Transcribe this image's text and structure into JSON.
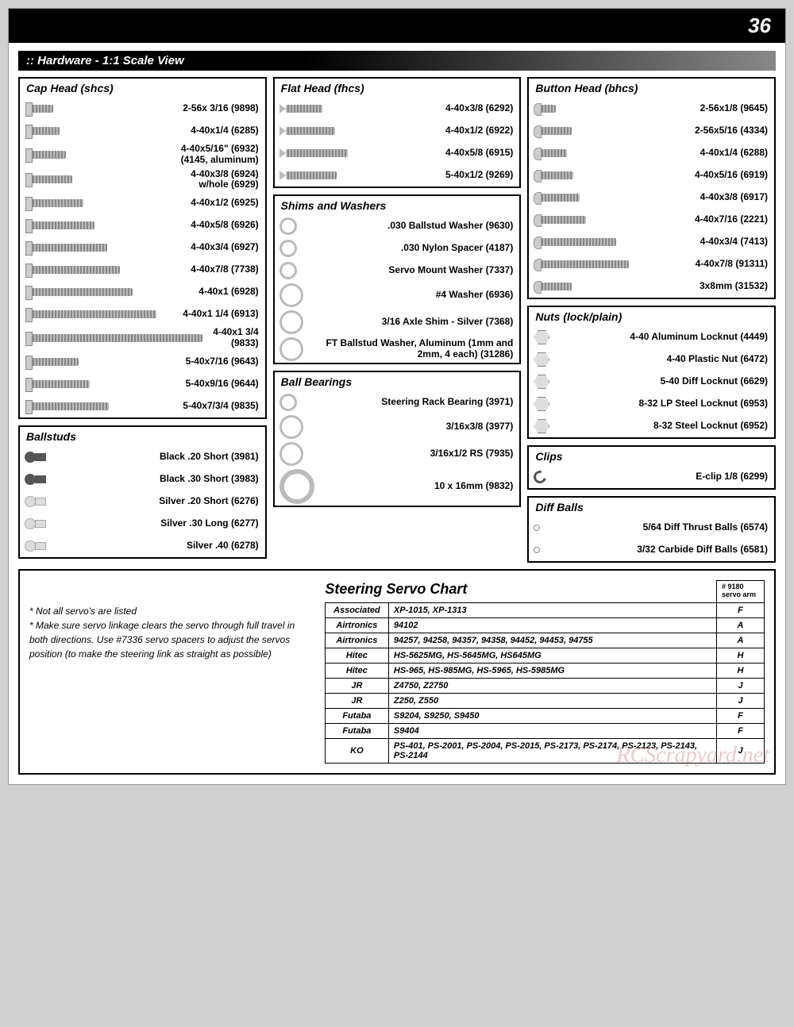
{
  "page_number": "36",
  "section_title": ":: Hardware - 1:1 Scale View",
  "cap_head": {
    "title": "Cap Head (shcs)",
    "items": [
      {
        "len": 28,
        "label": "2-56x 3/16 (9898)"
      },
      {
        "len": 36,
        "label": "4-40x1/4 (6285)"
      },
      {
        "len": 44,
        "label": "4-40x5/16\" (6932)\n(4145, aluminum)"
      },
      {
        "len": 52,
        "label": "4-40x3/8 (6924)\nw/hole (6929)"
      },
      {
        "len": 66,
        "label": "4-40x1/2 (6925)"
      },
      {
        "len": 80,
        "label": "4-40x5/8 (6926)"
      },
      {
        "len": 96,
        "label": "4-40x3/4 (6927)"
      },
      {
        "len": 112,
        "label": "4-40x7/8 (7738)"
      },
      {
        "len": 128,
        "label": "4-40x1 (6928)"
      },
      {
        "len": 158,
        "label": "4-40x1 1/4 (6913)"
      },
      {
        "len": 216,
        "label": "4-40x1 3/4 (9833)"
      },
      {
        "len": 60,
        "label": "5-40x7/16 (9643)"
      },
      {
        "len": 74,
        "label": "5-40x9/16 (9644)"
      },
      {
        "len": 98,
        "label": "5-40x7/3/4 (9835)"
      }
    ]
  },
  "flat_head": {
    "title": "Flat Head (fhcs)",
    "items": [
      {
        "len": 46,
        "label": "4-40x3/8 (6292)"
      },
      {
        "len": 62,
        "label": "4-40x1/2 (6922)"
      },
      {
        "len": 78,
        "label": "4-40x5/8 (6915)"
      },
      {
        "len": 64,
        "label": "5-40x1/2 (9269)"
      }
    ]
  },
  "shims": {
    "title": "Shims and Washers",
    "items": [
      {
        "label": ".030 Ballstud Washer (9630)"
      },
      {
        "label": ".030 Nylon  Spacer (4187)"
      },
      {
        "label": "Servo Mount Washer (7337)"
      },
      {
        "label": "#4 Washer (6936)"
      },
      {
        "label": "3/16 Axle Shim - Silver (7368)"
      },
      {
        "label": "FT Ballstud Washer, Aluminum (1mm and 2mm, 4 each) (31286)"
      }
    ]
  },
  "bearings": {
    "title": "Ball Bearings",
    "items": [
      {
        "label": "Steering Rack Bearing (3971)"
      },
      {
        "label": "3/16x3/8 (3977)"
      },
      {
        "label": "3/16x1/2 RS (7935)"
      },
      {
        "label": "10 x 16mm (9832)"
      }
    ]
  },
  "button_head": {
    "title": "Button Head (bhcs)",
    "items": [
      {
        "len": 20,
        "label": "2-56x1/8 (9645)"
      },
      {
        "len": 40,
        "label": "2-56x5/16 (4334)"
      },
      {
        "len": 34,
        "label": "4-40x1/4 (6288)"
      },
      {
        "len": 42,
        "label": "4-40x5/16 (6919)"
      },
      {
        "len": 50,
        "label": "4-40x3/8 (6917)"
      },
      {
        "len": 58,
        "label": "4-40x7/16 (2221)"
      },
      {
        "len": 96,
        "label": "4-40x3/4 (7413)"
      },
      {
        "len": 112,
        "label": "4-40x7/8 (91311)"
      },
      {
        "len": 40,
        "label": "3x8mm (31532)"
      }
    ]
  },
  "nuts": {
    "title": "Nuts (lock/plain)",
    "items": [
      {
        "label": "4-40 Aluminum Locknut (4449)"
      },
      {
        "label": "4-40 Plastic Nut (6472)"
      },
      {
        "label": "5-40 Diff Locknut (6629)"
      },
      {
        "label": "8-32 LP Steel Locknut (6953)"
      },
      {
        "label": "8-32 Steel Locknut (6952)"
      }
    ]
  },
  "clips": {
    "title": "Clips",
    "items": [
      {
        "label": "E-clip 1/8 (6299)"
      }
    ]
  },
  "diff_balls": {
    "title": "Diff Balls",
    "items": [
      {
        "label": "5/64 Diff Thrust Balls (6574)"
      },
      {
        "label": "3/32 Carbide Diff Balls (6581)"
      }
    ]
  },
  "ballstuds": {
    "title": "Ballstuds",
    "items": [
      {
        "dark": true,
        "label": "Black .20 Short (3981)"
      },
      {
        "dark": true,
        "label": "Black .30 Short (3983)"
      },
      {
        "dark": false,
        "label": "Silver .20 Short (6276)"
      },
      {
        "dark": false,
        "label": "Silver .30 Long (6277)"
      },
      {
        "dark": false,
        "label": "Silver .40 (6278)"
      }
    ]
  },
  "notes": [
    "* Not all servo's are listed",
    "* Make sure servo linkage clears the servo through full travel in both directions. Use #7336 servo spacers to adjust the servos position (to make the steering link as straight as possible)"
  ],
  "servo_chart": {
    "title": "Steering Servo Chart",
    "header_note": "# 9180\nservo arm",
    "rows": [
      {
        "brand": "Associated",
        "models": "XP-1015, XP-1313",
        "arm": "F"
      },
      {
        "brand": "Airtronics",
        "models": "94102",
        "arm": "A"
      },
      {
        "brand": "Airtronics",
        "models": "94257, 94258, 94357, 94358, 94452, 94453, 94755",
        "arm": "A"
      },
      {
        "brand": "Hitec",
        "models": "HS-5625MG, HS-5645MG, HS645MG",
        "arm": "H"
      },
      {
        "brand": "Hitec",
        "models": "HS-965, HS-985MG, HS-5965, HS-5985MG",
        "arm": "H"
      },
      {
        "brand": "JR",
        "models": "Z4750, Z2750",
        "arm": "J"
      },
      {
        "brand": "JR",
        "models": "Z250, Z550",
        "arm": "J"
      },
      {
        "brand": "Futaba",
        "models": "S9204, S9250, S9450",
        "arm": "F"
      },
      {
        "brand": "Futaba",
        "models": "S9404",
        "arm": "F"
      },
      {
        "brand": "KO",
        "models": "PS-401, PS-2001, PS-2004, PS-2015, PS-2173, PS-2174, PS-2123, PS-2143, PS-2144",
        "arm": "J"
      }
    ]
  },
  "watermark": "RCScrapyard.net"
}
